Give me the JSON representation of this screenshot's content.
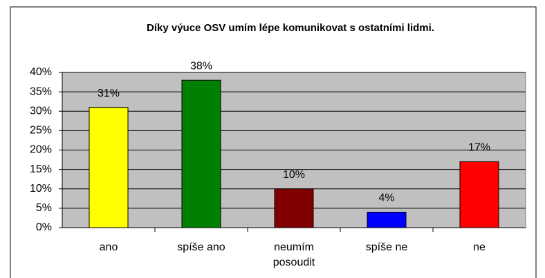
{
  "chart_data": {
    "type": "bar",
    "title": "Díky výuce OSV umím lépe komunikovat s ostatními lidmi.",
    "categories": [
      "ano",
      "spíše ano",
      "neumím posoudit",
      "spíše ne",
      "ne"
    ],
    "values": [
      31,
      38,
      10,
      4,
      17
    ],
    "value_labels": [
      "31%",
      "38%",
      "10%",
      "4%",
      "17%"
    ],
    "colors": [
      "#ffff00",
      "#008000",
      "#800000",
      "#0000ff",
      "#ff0000"
    ],
    "ylim": [
      0,
      40
    ],
    "yticks": [
      {
        "value": 0,
        "label": "0%"
      },
      {
        "value": 5,
        "label": "5%"
      },
      {
        "value": 10,
        "label": "10%"
      },
      {
        "value": 15,
        "label": "15%"
      },
      {
        "value": 20,
        "label": "20%"
      },
      {
        "value": 25,
        "label": "25%"
      },
      {
        "value": 30,
        "label": "30%"
      },
      {
        "value": 35,
        "label": "35%"
      },
      {
        "value": 40,
        "label": "40%"
      }
    ],
    "grid": true
  }
}
